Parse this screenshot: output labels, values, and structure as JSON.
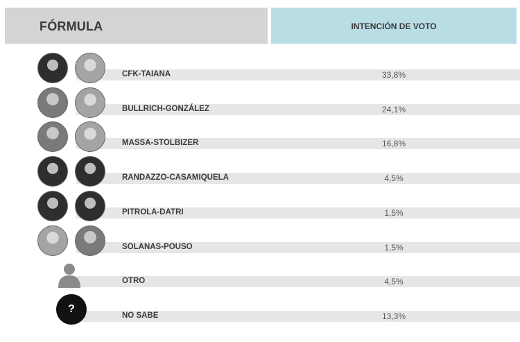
{
  "header": {
    "formula_label": "FÓRMULA",
    "vote_label": "INTENCIÓN DE VOTO"
  },
  "colors": {
    "header_left_bg": "#d4d4d4",
    "header_right_bg": "#b9dde5",
    "row_bar_bg": "#e6e6e6",
    "question_icon_bg": "#111111"
  },
  "chart_data": {
    "type": "table",
    "columns": [
      "FÓRMULA",
      "INTENCIÓN DE VOTO"
    ],
    "rows": [
      {
        "formula": "CFK-TAIANA",
        "value": 33.8,
        "label": "33,8%",
        "icon": "two-candidate-photos"
      },
      {
        "formula": "BULLRICH-GONZÁLEZ",
        "value": 24.1,
        "label": "24,1%",
        "icon": "two-candidate-photos"
      },
      {
        "formula": "MASSA-STOLBIZER",
        "value": 16.8,
        "label": "16,8%",
        "icon": "two-candidate-photos"
      },
      {
        "formula": "RANDAZZO-CASAMIQUELA",
        "value": 4.5,
        "label": "4,5%",
        "icon": "two-candidate-photos"
      },
      {
        "formula": "PITROLA-DATRI",
        "value": 1.5,
        "label": "1,5%",
        "icon": "two-candidate-photos"
      },
      {
        "formula": "SOLANAS-POUSO",
        "value": 1.5,
        "label": "1,5%",
        "icon": "two-candidate-photos"
      },
      {
        "formula": "OTRO",
        "value": 4.5,
        "label": "4,5%",
        "icon": "person-silhouette-icon"
      },
      {
        "formula": "NO SABE",
        "value": 13.3,
        "label": "13,3%",
        "icon": "question-mark-icon"
      }
    ]
  }
}
